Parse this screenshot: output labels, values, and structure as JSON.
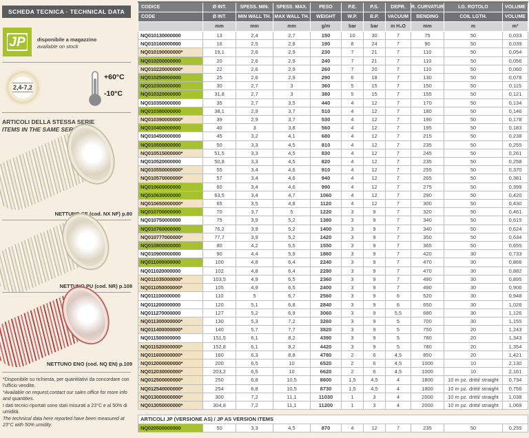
{
  "colors": {
    "green": "#a6c22e",
    "beige": "#f2e3c4",
    "cream_bg": "#f6efe1",
    "header_dark": "#5a5b5d",
    "table_head_it": "#7d7e81",
    "table_head_en": "#717274",
    "table_units": "#d4d4d6"
  },
  "sidebar": {
    "header": "SCHEDA TECNICA · TECHNICAL DATA",
    "logo_text": "JP",
    "availability_it": "disponibile a magazzino",
    "availability_en": "available on stock",
    "size_badge": "2,4-7,2",
    "temp_max": "+60°C",
    "temp_min": "-10°C",
    "series_title_it": "ARTICOLI DELLA STESSA SERIE",
    "series_title_en": "ITEMS IN THE SAME SERIES",
    "series_items": [
      {
        "caption": "NETTUNO SE (cod. NX NF) p.80"
      },
      {
        "caption": "NETTUNO PU (cod. NR) p.108"
      },
      {
        "caption": "NETTUNO ENO (cod. NQ EN) p.109"
      }
    ],
    "footnote_request_it": "*Disponibile su richiesta, per quantitativi da concordare con l'ufficio vendite.",
    "footnote_request_en": "*Available on request,contact our sales office for more info and quantities.",
    "footnote_data_it": "I dati tecnici riportati sono stati misurati a 23°C e al 50% di umidità.",
    "footnote_data_en": "The technical data here reported have been measured at 23°C with 50% umidity."
  },
  "table": {
    "head_it": [
      "CODICE",
      "Ø INT.",
      "SPESS. MIN.",
      "SPESS. MAX.",
      "PESO",
      "P.E.",
      "P.S.",
      "DEPR.",
      "R. CURVATURA",
      "LG. ROTOLO",
      "VOLUME"
    ],
    "head_en": [
      "CODE",
      "Ø INT.",
      "MIN WALL TH.",
      "MAX WALL TH.",
      "WEIGHT",
      "W.P.",
      "B.P.",
      "VACUUM",
      "BENDING",
      "COIL LGTH.",
      "VOLUME"
    ],
    "units": [
      "",
      "mm",
      "mm",
      "mm",
      "g/m",
      "bar",
      "bar",
      "m H₂O",
      "mm",
      "m",
      "m³"
    ],
    "rows": [
      {
        "code": "NQ010130000000",
        "hl": "none",
        "v": [
          "13",
          "2,4",
          "2,7",
          "150",
          "10",
          "30",
          "7",
          "75",
          "50",
          "0,033"
        ]
      },
      {
        "code": "NQ010160000000",
        "hl": "none",
        "v": [
          "16",
          "2,5",
          "2,8",
          "190",
          "8",
          "24",
          "7",
          "90",
          "50",
          "0,039"
        ]
      },
      {
        "code": "NQ010190000000*",
        "hl": "beige",
        "v": [
          "19,1",
          "2,6",
          "2,9",
          "230",
          "7",
          "21",
          "7",
          "110",
          "50",
          "0,054"
        ]
      },
      {
        "code": "NQ010200000000",
        "hl": "green",
        "v": [
          "20",
          "2,6",
          "2,9",
          "240",
          "7",
          "21",
          "7",
          "110",
          "50",
          "0,056"
        ]
      },
      {
        "code": "NQ010220000000*",
        "hl": "beige",
        "v": [
          "22",
          "2,6",
          "2,9",
          "260",
          "7",
          "20",
          "7",
          "110",
          "50",
          "0,060"
        ]
      },
      {
        "code": "NQ010250000000",
        "hl": "green",
        "v": [
          "25",
          "2,6",
          "2,9",
          "290",
          "6",
          "18",
          "7",
          "130",
          "50",
          "0,078"
        ]
      },
      {
        "code": "NQ010300000000",
        "hl": "green",
        "v": [
          "30",
          "2,7",
          "3",
          "360",
          "5",
          "15",
          "7",
          "150",
          "50",
          "0,115"
        ]
      },
      {
        "code": "NQ010320000000",
        "hl": "green",
        "v": [
          "31,8",
          "2,7",
          "3",
          "380",
          "5",
          "15",
          "7",
          "155",
          "50",
          "0,121"
        ]
      },
      {
        "code": "NQ010350000000",
        "hl": "none",
        "v": [
          "35",
          "2,7",
          "3,5",
          "440",
          "4",
          "12",
          "7",
          "170",
          "50",
          "0,134"
        ]
      },
      {
        "code": "NQ010380000000",
        "hl": "green",
        "v": [
          "38,1",
          "2,9",
          "3,7",
          "510",
          "4",
          "12",
          "7",
          "180",
          "50",
          "0,146"
        ]
      },
      {
        "code": "NQ010390000000*",
        "hl": "beige",
        "v": [
          "39",
          "2,9",
          "3,7",
          "530",
          "4",
          "12",
          "7",
          "190",
          "50",
          "0,178"
        ]
      },
      {
        "code": "NQ010400000000",
        "hl": "green",
        "v": [
          "40",
          "3",
          "3,8",
          "560",
          "4",
          "12",
          "7",
          "195",
          "50",
          "0,183"
        ]
      },
      {
        "code": "NQ010450000000",
        "hl": "none",
        "v": [
          "45",
          "3,2",
          "4,1",
          "680",
          "4",
          "12",
          "7",
          "215",
          "50",
          "0,238"
        ]
      },
      {
        "code": "NQ010500000000",
        "hl": "green",
        "v": [
          "50",
          "3,3",
          "4,5",
          "810",
          "4",
          "12",
          "7",
          "235",
          "50",
          "0,255"
        ]
      },
      {
        "code": "NQ010515000000*",
        "hl": "beige",
        "v": [
          "51,5",
          "3,3",
          "4,5",
          "830",
          "4",
          "12",
          "7",
          "245",
          "50",
          "0,261"
        ]
      },
      {
        "code": "NQ010520000000",
        "hl": "none",
        "v": [
          "50,8",
          "3,3",
          "4,5",
          "820",
          "4",
          "12",
          "7",
          "235",
          "50",
          "0,258"
        ]
      },
      {
        "code": "NQ010550000000*",
        "hl": "beige",
        "v": [
          "55",
          "3,4",
          "4,6",
          "910",
          "4",
          "12",
          "7",
          "255",
          "50",
          "0,370"
        ]
      },
      {
        "code": "NQ010570000000*",
        "hl": "beige",
        "v": [
          "57",
          "3,4",
          "4,6",
          "940",
          "4",
          "12",
          "7",
          "265",
          "50",
          "0,381"
        ]
      },
      {
        "code": "NQ010600000000",
        "hl": "green",
        "v": [
          "60",
          "3,4",
          "4,6",
          "990",
          "4",
          "12",
          "7",
          "275",
          "50",
          "0,399"
        ]
      },
      {
        "code": "NQ010630000000",
        "hl": "green",
        "v": [
          "63,5",
          "3,4",
          "4,7",
          "1060",
          "4",
          "12",
          "7",
          "290",
          "50",
          "0,420"
        ]
      },
      {
        "code": "NQ010650000000*",
        "hl": "beige",
        "v": [
          "65",
          "3,5",
          "4,8",
          "1120",
          "4",
          "12",
          "7",
          "300",
          "50",
          "0,430"
        ]
      },
      {
        "code": "NQ010700000000",
        "hl": "green",
        "v": [
          "70",
          "3,7",
          "5",
          "1220",
          "3",
          "9",
          "7",
          "320",
          "50",
          "0,461"
        ]
      },
      {
        "code": "NQ010750000000",
        "hl": "none",
        "v": [
          "75",
          "3,9",
          "5,2",
          "1380",
          "3",
          "9",
          "7",
          "340",
          "50",
          "0,615"
        ]
      },
      {
        "code": "NQ010760000000",
        "hl": "green",
        "v": [
          "76,2",
          "3,9",
          "5,2",
          "1400",
          "3",
          "9",
          "7",
          "340",
          "50",
          "0,624"
        ]
      },
      {
        "code": "NQ010777000000*",
        "hl": "beige",
        "v": [
          "77,7",
          "3,9",
          "5,2",
          "1420",
          "3",
          "9",
          "7",
          "350",
          "50",
          "0,634"
        ]
      },
      {
        "code": "NQ010800000000",
        "hl": "green",
        "v": [
          "80",
          "4,2",
          "5,5",
          "1550",
          "3",
          "9",
          "7",
          "365",
          "50",
          "0,655"
        ]
      },
      {
        "code": "NQ010900000000",
        "hl": "none",
        "v": [
          "90",
          "4,4",
          "5,9",
          "1860",
          "3",
          "9",
          "7",
          "420",
          "30",
          "0,733"
        ]
      },
      {
        "code": "NQ011000000000",
        "hl": "green",
        "v": [
          "100",
          "4,8",
          "6,4",
          "2240",
          "3",
          "9",
          "7",
          "470",
          "30",
          "0,866"
        ]
      },
      {
        "code": "NQ011020000000",
        "hl": "none",
        "v": [
          "102",
          "4,8",
          "6,4",
          "2280",
          "3",
          "9",
          "7",
          "470",
          "30",
          "0,882"
        ]
      },
      {
        "code": "NQ011035000000*",
        "hl": "beige",
        "v": [
          "103,5",
          "4,9",
          "6,5",
          "2360",
          "3",
          "9",
          "7",
          "490",
          "30",
          "0,895"
        ]
      },
      {
        "code": "NQ011050000000*",
        "hl": "beige",
        "v": [
          "105",
          "4,9",
          "6,5",
          "2400",
          "3",
          "9",
          "7",
          "490",
          "30",
          "0,906"
        ]
      },
      {
        "code": "NQ011100000000",
        "hl": "none",
        "v": [
          "110",
          "5",
          "6,7",
          "2560",
          "3",
          "9",
          "6",
          "520",
          "30",
          "0,948"
        ]
      },
      {
        "code": "NQ011200000000",
        "hl": "none",
        "v": [
          "120",
          "5,1",
          "6,8",
          "2840",
          "3",
          "9",
          "6",
          "650",
          "30",
          "1,026"
        ]
      },
      {
        "code": "NQ011270000000",
        "hl": "none",
        "v": [
          "127",
          "5,2",
          "6,9",
          "3060",
          "3",
          "9",
          "5,5",
          "680",
          "30",
          "1,126"
        ]
      },
      {
        "code": "NQ011300000000*",
        "hl": "beige",
        "v": [
          "130",
          "5,3",
          "7,2",
          "3260",
          "3",
          "9",
          "5",
          "700",
          "30",
          "1,155"
        ]
      },
      {
        "code": "NQ011400000000*",
        "hl": "beige",
        "v": [
          "140",
          "5,7",
          "7,7",
          "3820",
          "3",
          "9",
          "5",
          "750",
          "20",
          "1,243"
        ]
      },
      {
        "code": "NQ011500000000",
        "hl": "none",
        "v": [
          "151,5",
          "6,1",
          "8,2",
          "4390",
          "3",
          "9",
          "5",
          "780",
          "20",
          "1,343"
        ]
      },
      {
        "code": "NQ011520000000*",
        "hl": "beige",
        "v": [
          "152,8",
          "6,1",
          "8,2",
          "4420",
          "3",
          "9",
          "5",
          "780",
          "20",
          "1,354"
        ]
      },
      {
        "code": "NQ011600000000*",
        "hl": "beige",
        "v": [
          "160",
          "6,3",
          "8,8",
          "4780",
          "2",
          "6",
          "4,5",
          "850",
          "20",
          "1,421"
        ]
      },
      {
        "code": "NQ012000000000*",
        "hl": "beige",
        "v": [
          "200",
          "6,5",
          "10",
          "6520",
          "2",
          "6",
          "4,5",
          "1000",
          "10",
          "2,130"
        ]
      },
      {
        "code": "NQ012030000000*",
        "hl": "beige",
        "v": [
          "203,2",
          "6,5",
          "10",
          "6620",
          "2",
          "6",
          "4,5",
          "1000",
          "10",
          "2,161"
        ]
      },
      {
        "code": "NQ012500000000*",
        "hl": "beige",
        "v": [
          "250",
          "6,8",
          "10,5",
          "8600",
          "1,5",
          "4,5",
          "4",
          "1800",
          "10 m pz. dritti/ straight",
          "0,734"
        ]
      },
      {
        "code": "NQ012540000000*",
        "hl": "beige",
        "v": [
          "254",
          "6,8",
          "10,5",
          "8730",
          "1,5",
          "4,5",
          "4",
          "1800",
          "10 m pz. dritti/ straight",
          "0,756"
        ]
      },
      {
        "code": "NQ013000000000*",
        "hl": "beige",
        "v": [
          "300",
          "7,2",
          "11,1",
          "11030",
          "1",
          "3",
          "4",
          "2000",
          "10 m pz. dritti/ straight",
          "1,038"
        ]
      },
      {
        "code": "NQ013050000000*",
        "hl": "beige",
        "v": [
          "304,8",
          "7,2",
          "11,1",
          "11200",
          "1",
          "3",
          "4",
          "2000",
          "10 m pz. dritti/ straight",
          "1,069"
        ]
      }
    ],
    "as_section": {
      "title": "ARTICOLI JP (VERSIONE AS) / JP AS VERSION ITEMS",
      "rows": [
        {
          "code": "NQ020500000000",
          "hl": "green",
          "v": [
            "50",
            "3,3",
            "4,5",
            "870",
            "4",
            "12",
            "7",
            "235",
            "50",
            "0,255"
          ]
        }
      ]
    }
  }
}
